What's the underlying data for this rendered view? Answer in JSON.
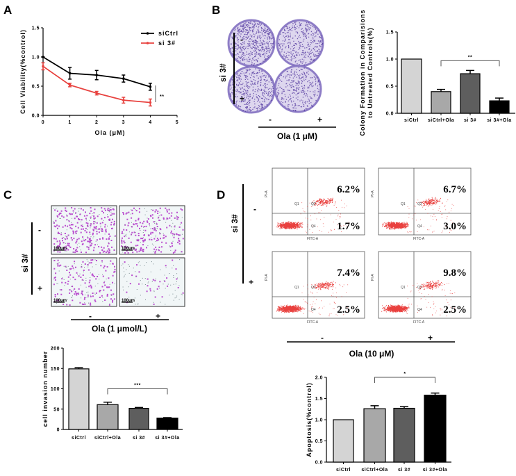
{
  "panels": {
    "A": {
      "label": "A"
    },
    "B": {
      "label": "B",
      "row_factor": "si 3#",
      "row_levels": [
        "-",
        "+"
      ],
      "col_levels": [
        "-",
        "+"
      ],
      "col_factor": "Ola (1 μM)"
    },
    "C": {
      "label": "C",
      "row_factor": "si 3#",
      "row_levels": [
        "-",
        "+"
      ],
      "col_levels": [
        "-",
        "+"
      ],
      "col_factor": "Ola (1 μmol/L)",
      "scale_bar": "100μm"
    },
    "D": {
      "label": "D",
      "row_factor": "si 3#",
      "row_levels": [
        "-",
        "+"
      ],
      "col_levels": [
        "-",
        "+"
      ],
      "col_factor": "Ola (10 μM)",
      "flow": {
        "y_axis": "PI-A",
        "x_axis": "FITC-A",
        "quadrants": [
          "Q1",
          "Q2",
          "Q4"
        ],
        "plots": [
          {
            "q2": "6.2%",
            "q4": "1.7%"
          },
          {
            "q2": "6.7%",
            "q4": "3.0%"
          },
          {
            "q2": "7.4%",
            "q4": "2.5%"
          },
          {
            "q2": "9.8%",
            "q4": "2.5%"
          }
        ]
      }
    }
  },
  "chart_data": [
    {
      "id": "A",
      "type": "line",
      "xlabel": "Ola (μM)",
      "ylabel": "Cell Viability(%control)",
      "xlim": [
        0,
        5
      ],
      "ylim": [
        0,
        1.5
      ],
      "xticks": [
        "0",
        "1",
        "2",
        "3",
        "4",
        "5"
      ],
      "yticks": [
        "0.0",
        "0.5",
        "1.0",
        "1.5"
      ],
      "x": [
        0,
        1,
        2,
        3,
        4
      ],
      "series": [
        {
          "name": "siCtrl",
          "color": "#000000",
          "values": [
            1.0,
            0.72,
            0.69,
            0.63,
            0.49
          ],
          "errors": [
            0.0,
            0.1,
            0.08,
            0.06,
            0.06
          ]
        },
        {
          "name": "si 3#",
          "color": "#e8423f",
          "values": [
            0.84,
            0.52,
            0.38,
            0.26,
            0.22
          ],
          "errors": [
            0.06,
            0.03,
            0.03,
            0.05,
            0.06
          ]
        }
      ],
      "legend": "top-right",
      "significance": "**"
    },
    {
      "id": "B",
      "type": "bar",
      "ylabel": [
        "Colony Formation in Comparisions",
        "to Untreated Controls(%)"
      ],
      "ylim": [
        0,
        1.5
      ],
      "yticks": [
        "0.0",
        "0.5",
        "1.0",
        "1.5"
      ],
      "categories": [
        "siCtrl",
        "siCtrl+Ola",
        "si 3#",
        "si 3#+Ola"
      ],
      "values": [
        1.0,
        0.4,
        0.73,
        0.23
      ],
      "errors": [
        0,
        0.04,
        0.06,
        0.05
      ],
      "colors": [
        "#d4d4d4",
        "#a8a8a8",
        "#5e5e5e",
        "#000000"
      ],
      "significance": {
        "from": 1,
        "to": 3,
        "label": "**"
      }
    },
    {
      "id": "C",
      "type": "bar",
      "ylabel": [
        "cell invasion number"
      ],
      "ylim": [
        0,
        200
      ],
      "yticks": [
        "0",
        "50",
        "100",
        "150",
        "200"
      ],
      "categories": [
        "siCtrl",
        "siCtrl+Ola",
        "si 3#",
        "si 3#+Ola"
      ],
      "values": [
        149,
        61,
        52,
        28
      ],
      "errors": [
        3,
        6,
        2,
        1
      ],
      "colors": [
        "#d4d4d4",
        "#a8a8a8",
        "#5e5e5e",
        "#000000"
      ],
      "significance": {
        "from": 1,
        "to": 3,
        "label": "***"
      }
    },
    {
      "id": "D",
      "type": "bar",
      "ylabel": [
        "Apoptosis(%control)"
      ],
      "ylim": [
        0,
        2.0
      ],
      "yticks": [
        "0.0",
        "0.5",
        "1.0",
        "1.5",
        "2.0"
      ],
      "categories": [
        "siCtrl",
        "siCtrl+Ola",
        "si 3#",
        "si 3#+Ola"
      ],
      "values": [
        1.0,
        1.26,
        1.27,
        1.58
      ],
      "errors": [
        0,
        0.07,
        0.04,
        0.05
      ],
      "colors": [
        "#d4d4d4",
        "#a8a8a8",
        "#5e5e5e",
        "#000000"
      ],
      "significance": {
        "from": 1,
        "to": 3,
        "label": "*"
      }
    }
  ]
}
